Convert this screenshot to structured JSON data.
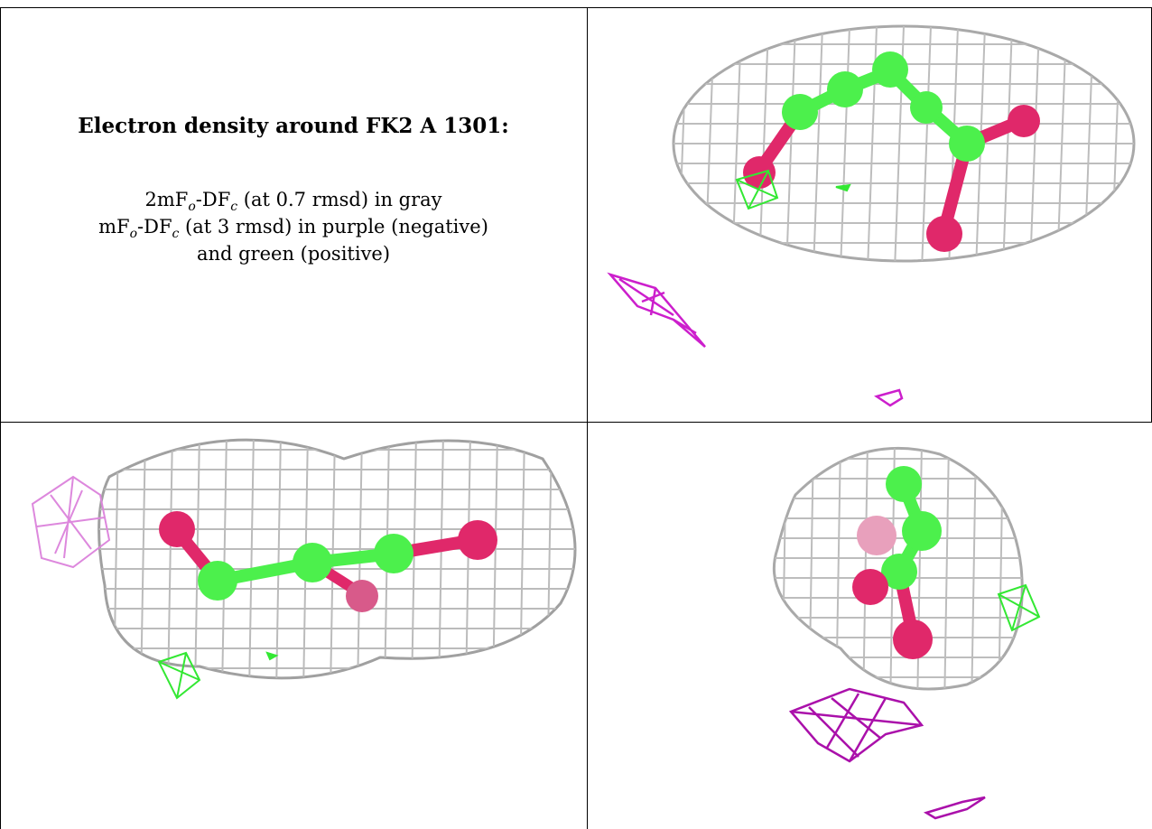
{
  "caption": {
    "title": "Electron density around FK2 A 1301:",
    "line1": {
      "lead": "2mF",
      "sub1": "o",
      "mid": "-DF",
      "sub2": "c",
      "tail": " (at 0.7 rmsd) in gray"
    },
    "line2": {
      "lead": "mF",
      "sub1": "o",
      "mid": "-DF",
      "sub2": "c",
      "tail": " (at 3 rmsd) in purple (negative)"
    },
    "line3": "and green (positive)"
  },
  "colors": {
    "mesh_gray": "#a9a9a9",
    "positive_green": "#33e833",
    "negative_purple": "#cc1fcc",
    "carbon_green": "#4cf04c",
    "oxygen_pink": "#e0286a",
    "rule": "#000000"
  },
  "panels": [
    {
      "name": "view-top-right"
    },
    {
      "name": "view-bottom-left"
    },
    {
      "name": "view-bottom-right"
    }
  ]
}
